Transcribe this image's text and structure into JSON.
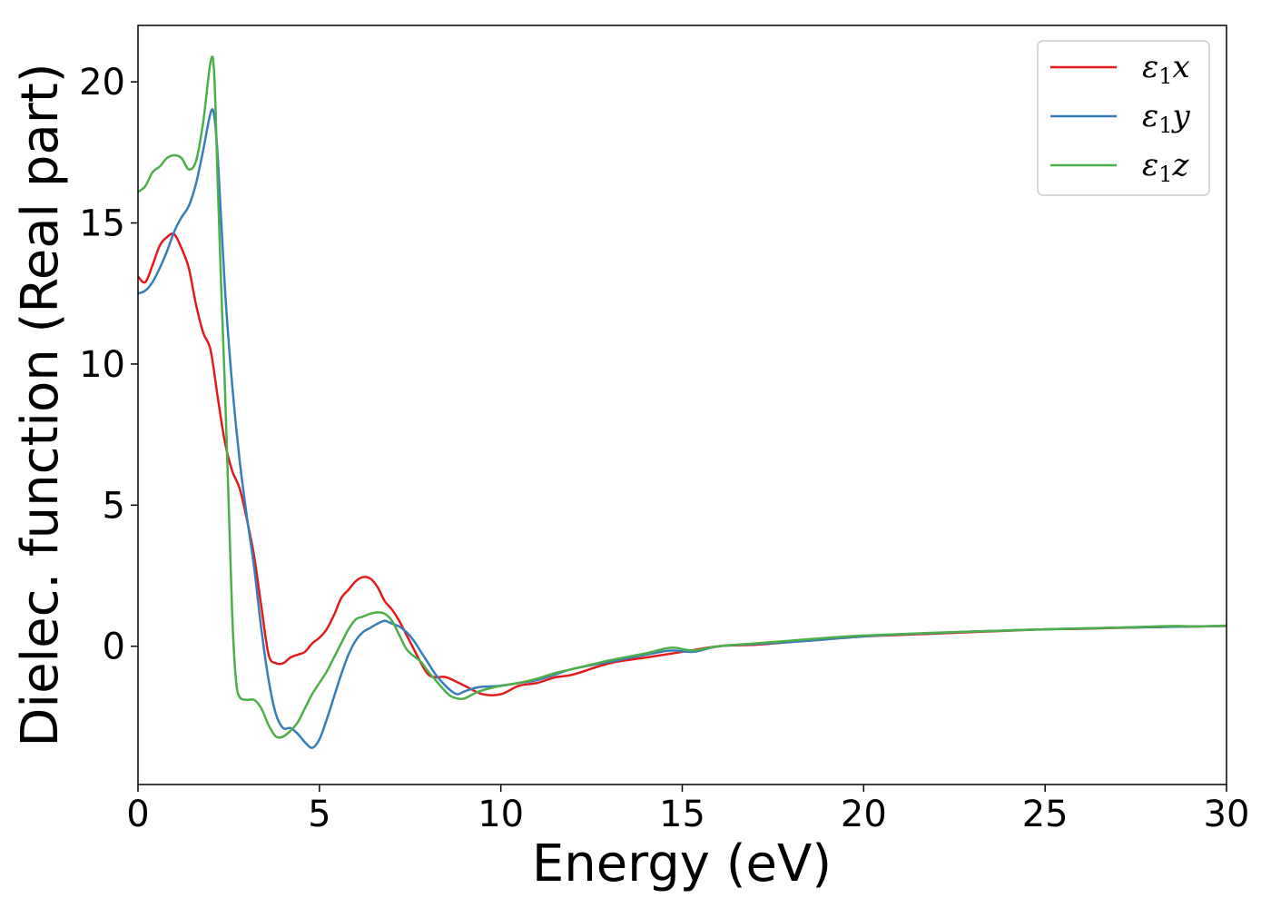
{
  "chart_data": {
    "type": "line",
    "title": "",
    "xlabel": "Energy (eV)",
    "ylabel": "Dielec. function (Real part)",
    "xlim": [
      0,
      30
    ],
    "ylim": [
      -4.9,
      22
    ],
    "xticks": [
      0,
      5,
      10,
      15,
      20,
      25,
      30
    ],
    "yticks": [
      0,
      5,
      10,
      15,
      20
    ],
    "grid": false,
    "legend_position": "top-right",
    "series": [
      {
        "name": "ε1x",
        "symbol": "ε",
        "subscript": "1",
        "suffix": "x",
        "color": "#e31a1c",
        "x": [
          0,
          0.2,
          0.4,
          0.6,
          0.8,
          1.0,
          1.2,
          1.4,
          1.6,
          1.8,
          2.0,
          2.2,
          2.4,
          2.6,
          2.8,
          3.0,
          3.2,
          3.4,
          3.6,
          3.8,
          4.0,
          4.2,
          4.4,
          4.6,
          4.8,
          5.0,
          5.2,
          5.4,
          5.6,
          5.8,
          6.0,
          6.2,
          6.4,
          6.6,
          6.8,
          7.0,
          7.2,
          7.4,
          7.6,
          7.8,
          8.0,
          8.2,
          8.5,
          9.0,
          9.5,
          10.0,
          10.5,
          11.0,
          11.5,
          12.0,
          13.0,
          14.0,
          15.0,
          16.0,
          17.0,
          18.0,
          19.0,
          20.0,
          21.0,
          22.0,
          23.0,
          24.0,
          25.0,
          26.0,
          27.0,
          28.0,
          29.0,
          30.0
        ],
        "y": [
          13.1,
          12.9,
          13.5,
          14.2,
          14.5,
          14.6,
          14.1,
          13.4,
          12.1,
          11.1,
          10.5,
          8.8,
          7.2,
          6.2,
          5.6,
          4.5,
          3.2,
          1.4,
          -0.3,
          -0.6,
          -0.6,
          -0.4,
          -0.3,
          -0.2,
          0.1,
          0.3,
          0.6,
          1.1,
          1.7,
          2.0,
          2.3,
          2.45,
          2.4,
          2.1,
          1.6,
          1.3,
          0.9,
          0.4,
          -0.1,
          -0.6,
          -1.0,
          -1.1,
          -1.1,
          -1.4,
          -1.7,
          -1.7,
          -1.4,
          -1.3,
          -1.1,
          -1.0,
          -0.6,
          -0.4,
          -0.2,
          0.0,
          0.05,
          0.15,
          0.25,
          0.35,
          0.4,
          0.45,
          0.5,
          0.55,
          0.6,
          0.62,
          0.65,
          0.68,
          0.7,
          0.72
        ]
      },
      {
        "name": "ε1y",
        "symbol": "ε",
        "subscript": "1",
        "suffix": "y",
        "color": "#377eb8",
        "x": [
          0,
          0.2,
          0.4,
          0.6,
          0.8,
          1.0,
          1.2,
          1.4,
          1.6,
          1.8,
          2.0,
          2.1,
          2.2,
          2.4,
          2.6,
          2.8,
          3.0,
          3.2,
          3.4,
          3.6,
          3.8,
          4.0,
          4.2,
          4.4,
          4.6,
          4.8,
          5.0,
          5.2,
          5.4,
          5.6,
          5.8,
          6.0,
          6.2,
          6.4,
          6.6,
          6.8,
          7.0,
          7.2,
          7.4,
          7.6,
          7.8,
          8.0,
          8.2,
          8.4,
          8.6,
          8.8,
          9.0,
          9.4,
          10.0,
          10.5,
          11.0,
          11.5,
          12.0,
          13.0,
          14.0,
          14.7,
          15.3,
          16.0,
          17.0,
          18.0,
          19.0,
          20.0,
          21.0,
          22.0,
          23.0,
          24.0,
          25.0,
          26.0,
          27.0,
          28.0,
          29.0,
          30.0
        ],
        "y": [
          12.5,
          12.6,
          12.9,
          13.4,
          14.0,
          14.7,
          15.2,
          15.6,
          16.4,
          17.6,
          18.9,
          18.8,
          17.3,
          12.6,
          9.2,
          6.6,
          4.6,
          2.8,
          0.6,
          -1.2,
          -2.4,
          -2.9,
          -2.9,
          -3.1,
          -3.4,
          -3.6,
          -3.3,
          -2.6,
          -1.8,
          -1.0,
          -0.3,
          0.2,
          0.5,
          0.65,
          0.8,
          0.9,
          0.8,
          0.7,
          0.5,
          0.2,
          -0.2,
          -0.6,
          -1.0,
          -1.3,
          -1.55,
          -1.7,
          -1.6,
          -1.45,
          -1.4,
          -1.3,
          -1.2,
          -1.0,
          -0.8,
          -0.55,
          -0.3,
          -0.15,
          -0.2,
          0.0,
          0.08,
          0.15,
          0.25,
          0.35,
          0.42,
          0.47,
          0.52,
          0.56,
          0.6,
          0.63,
          0.66,
          0.68,
          0.7,
          0.72
        ]
      },
      {
        "name": "ε1z",
        "symbol": "ε",
        "subscript": "1",
        "suffix": "z",
        "color": "#4daf4a",
        "x": [
          0,
          0.2,
          0.4,
          0.6,
          0.8,
          1.0,
          1.2,
          1.4,
          1.6,
          1.8,
          2.0,
          2.1,
          2.2,
          2.3,
          2.4,
          2.5,
          2.6,
          2.7,
          2.8,
          3.0,
          3.2,
          3.4,
          3.6,
          3.8,
          4.0,
          4.2,
          4.4,
          4.6,
          4.8,
          5.0,
          5.2,
          5.4,
          5.6,
          5.8,
          6.0,
          6.2,
          6.4,
          6.6,
          6.8,
          7.0,
          7.2,
          7.4,
          7.6,
          7.8,
          8.0,
          8.2,
          8.4,
          8.6,
          8.8,
          9.0,
          9.4,
          10.0,
          10.5,
          11.0,
          11.5,
          12.0,
          13.0,
          14.0,
          14.7,
          15.3,
          16.0,
          17.0,
          18.0,
          19.0,
          20.0,
          21.0,
          22.0,
          23.0,
          24.0,
          25.0,
          26.0,
          27.0,
          28.0,
          28.6,
          29.2,
          30.0
        ],
        "y": [
          16.1,
          16.3,
          16.8,
          17.0,
          17.3,
          17.4,
          17.3,
          16.9,
          17.2,
          18.6,
          20.7,
          20.3,
          16.3,
          12.5,
          9.0,
          5.0,
          1.0,
          -1.2,
          -1.8,
          -1.9,
          -1.9,
          -2.2,
          -2.8,
          -3.2,
          -3.2,
          -3.0,
          -2.7,
          -2.2,
          -1.7,
          -1.3,
          -0.9,
          -0.4,
          0.1,
          0.6,
          0.95,
          1.05,
          1.15,
          1.2,
          1.15,
          0.9,
          0.4,
          -0.1,
          -0.35,
          -0.55,
          -0.9,
          -1.2,
          -1.5,
          -1.75,
          -1.85,
          -1.85,
          -1.6,
          -1.4,
          -1.3,
          -1.15,
          -0.95,
          -0.8,
          -0.5,
          -0.25,
          -0.05,
          -0.15,
          0.0,
          0.1,
          0.2,
          0.3,
          0.38,
          0.43,
          0.48,
          0.52,
          0.56,
          0.6,
          0.63,
          0.66,
          0.7,
          0.72,
          0.7,
          0.73
        ]
      }
    ]
  }
}
